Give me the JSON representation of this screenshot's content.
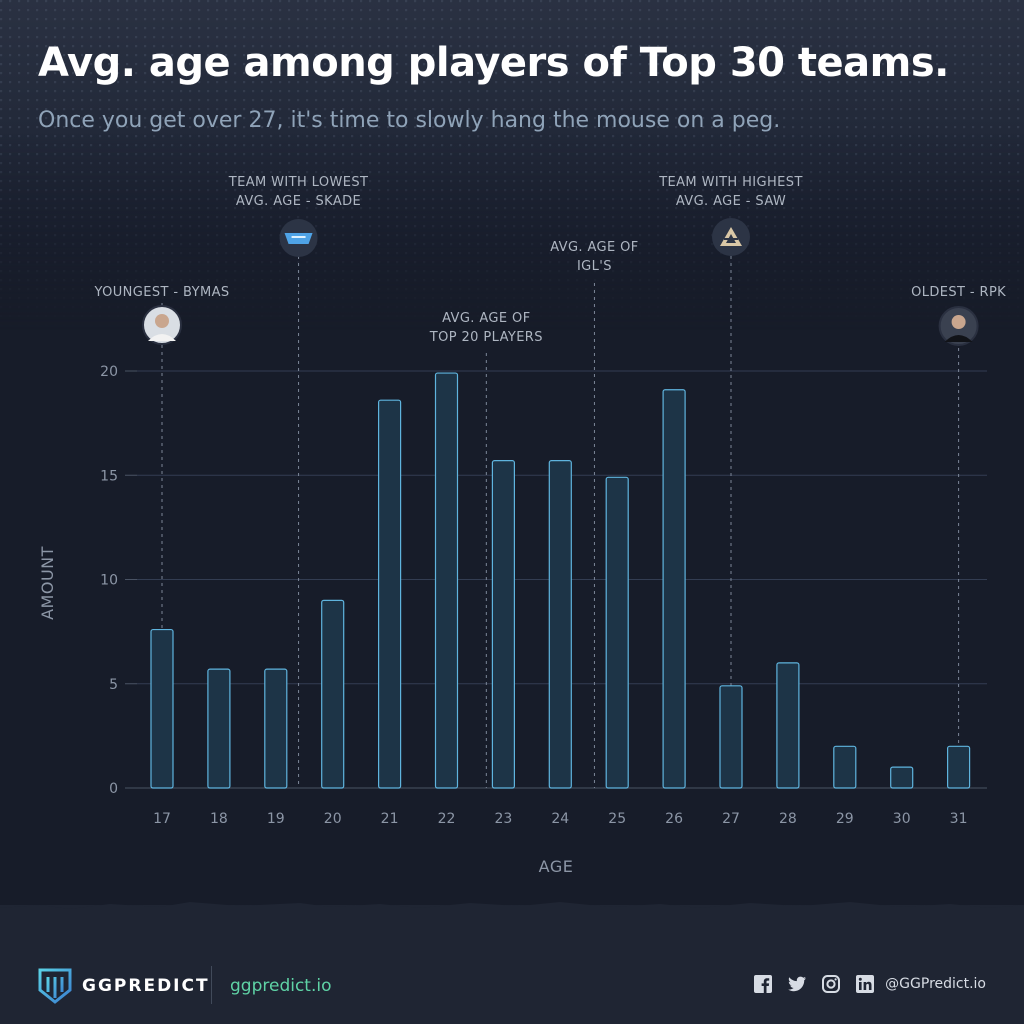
{
  "header": {
    "title": "Avg. age among players of Top 30 teams.",
    "subtitle": "Once you get over 27, it's time to slowly hang the mouse on a peg."
  },
  "chart_data": {
    "type": "bar",
    "categories": [
      "17",
      "18",
      "19",
      "20",
      "21",
      "22",
      "23",
      "24",
      "25",
      "26",
      "27",
      "28",
      "29",
      "30",
      "31"
    ],
    "values": [
      7.6,
      5.7,
      5.7,
      9.0,
      18.6,
      19.9,
      15.7,
      15.7,
      14.9,
      19.1,
      4.9,
      6.0,
      2.0,
      1.0,
      2.0
    ],
    "xlabel": "AGE",
    "ylabel": "AMOUNT",
    "ylim": [
      0,
      20
    ],
    "yticks": [
      0,
      5,
      10,
      15,
      20
    ],
    "grid": true,
    "bar_color": "#5fb4de",
    "bar_fill": "#1d3447",
    "annotations": [
      {
        "lines": [
          "YOUNGEST - BYMAS"
        ],
        "x": 17,
        "icon": "player-avatar-bymas"
      },
      {
        "lines": [
          "TEAM WITH LOWEST",
          "AVG. AGE - SKADE"
        ],
        "x": 19.4,
        "icon": "skade-team-logo"
      },
      {
        "lines": [
          "AVG. AGE OF",
          "TOP 20 PLAYERS"
        ],
        "x": 22.7,
        "icon": ""
      },
      {
        "lines": [
          "AVG. AGE OF",
          "IGL'S"
        ],
        "x": 24.6,
        "icon": ""
      },
      {
        "lines": [
          "TEAM WITH HIGHEST",
          "AVG. AGE - SAW"
        ],
        "x": 27,
        "icon": "saw-team-logo"
      },
      {
        "lines": [
          "OLDEST - RPK"
        ],
        "x": 31,
        "icon": "player-avatar-rpk"
      }
    ]
  },
  "footer": {
    "brand": "GGPREDICT",
    "site": "ggpredict.io",
    "handle": "@GGPredict.io",
    "social_icons": [
      "facebook-icon",
      "twitter-icon",
      "instagram-icon",
      "linkedin-icon"
    ],
    "accent": "#5fd3a6"
  }
}
